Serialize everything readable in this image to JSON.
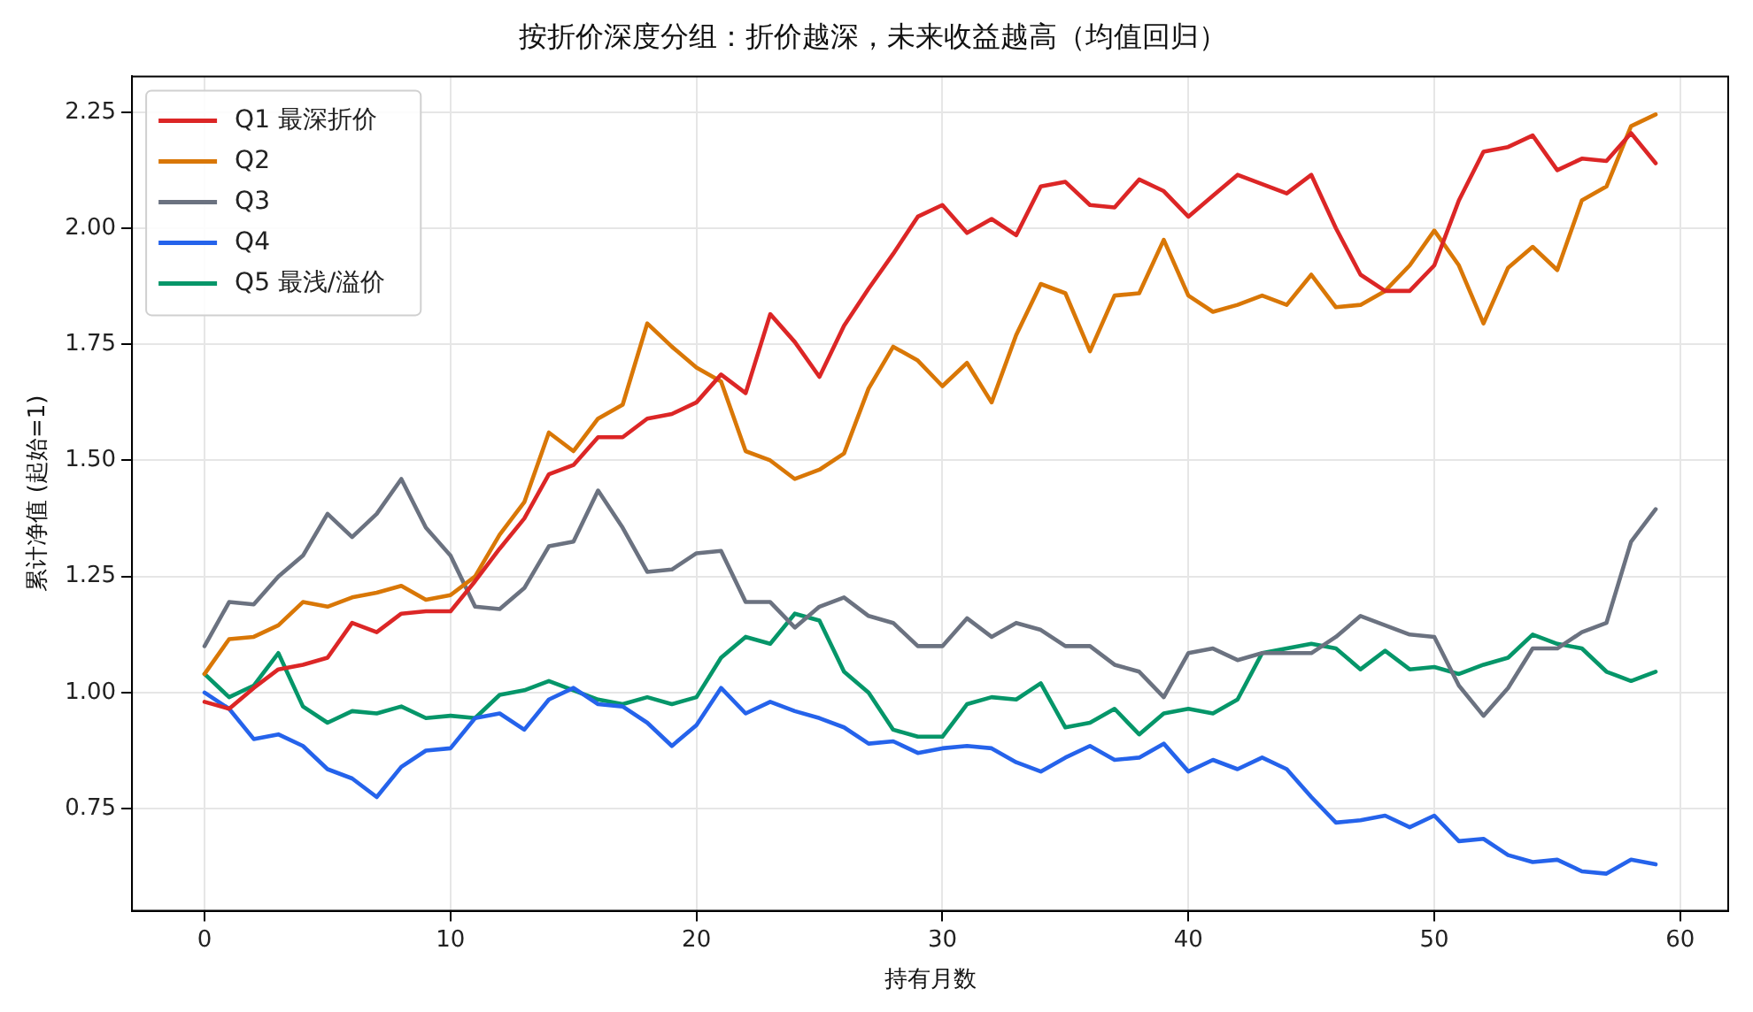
{
  "chart_data": {
    "type": "line",
    "title": "按折价深度分组：折价越深，未来收益越高（均值回归）",
    "xlabel": "持有月数",
    "ylabel": "累计净值 (起始=1)",
    "x": [
      0,
      1,
      2,
      3,
      4,
      5,
      6,
      7,
      8,
      9,
      10,
      11,
      12,
      13,
      14,
      15,
      16,
      17,
      18,
      19,
      20,
      21,
      22,
      23,
      24,
      25,
      26,
      27,
      28,
      29,
      30,
      31,
      32,
      33,
      34,
      35,
      36,
      37,
      38,
      39,
      40,
      41,
      42,
      43,
      44,
      45,
      46,
      47,
      48,
      49,
      50,
      51,
      52,
      53,
      54,
      55,
      56,
      57,
      58,
      59
    ],
    "xlim": [
      -2.95,
      61.95
    ],
    "xticks": [
      0,
      10,
      20,
      30,
      40,
      50,
      60
    ],
    "ylim": [
      0.53,
      2.327
    ],
    "yticks": [
      {
        "value": 0.75,
        "label": "0.75"
      },
      {
        "value": 1,
        "label": "1.00"
      },
      {
        "value": 1.25,
        "label": "1.25"
      },
      {
        "value": 1.5,
        "label": "1.50"
      },
      {
        "value": 1.75,
        "label": "1.75"
      },
      {
        "value": 2,
        "label": "2.00"
      },
      {
        "value": 2.25,
        "label": "2.25"
      }
    ],
    "grid": true,
    "legend": "top left",
    "line_style": "solid",
    "marker": "none",
    "series": [
      {
        "name": "Q1 最深折价",
        "color": "#dc2626",
        "values": [
          0.98,
          0.965,
          1.01,
          1.05,
          1.06,
          1.075,
          1.15,
          1.13,
          1.17,
          1.175,
          1.175,
          1.24,
          1.31,
          1.375,
          1.47,
          1.49,
          1.55,
          1.55,
          1.59,
          1.6,
          1.625,
          1.685,
          1.645,
          1.815,
          1.755,
          1.68,
          1.79,
          1.87,
          1.945,
          2.025,
          2.05,
          1.99,
          2.02,
          1.985,
          2.09,
          2.1,
          2.05,
          2.045,
          2.105,
          2.08,
          2.025,
          2.07,
          2.115,
          2.095,
          2.075,
          2.115,
          2.0,
          1.9,
          1.865,
          1.865,
          1.92,
          2.06,
          2.165,
          2.175,
          2.2,
          2.125,
          2.15,
          2.145,
          2.205,
          2.14
        ]
      },
      {
        "name": "Q2",
        "color": "#d97706",
        "values": [
          1.04,
          1.115,
          1.12,
          1.145,
          1.195,
          1.185,
          1.205,
          1.215,
          1.23,
          1.2,
          1.21,
          1.25,
          1.34,
          1.41,
          1.56,
          1.52,
          1.59,
          1.62,
          1.795,
          1.745,
          1.7,
          1.67,
          1.52,
          1.5,
          1.46,
          1.48,
          1.515,
          1.655,
          1.745,
          1.715,
          1.66,
          1.71,
          1.625,
          1.77,
          1.88,
          1.86,
          1.735,
          1.855,
          1.86,
          1.975,
          1.855,
          1.82,
          1.835,
          1.855,
          1.835,
          1.9,
          1.83,
          1.835,
          1.865,
          1.92,
          1.995,
          1.92,
          1.795,
          1.915,
          1.96,
          1.91,
          2.06,
          2.09,
          2.22,
          2.245
        ]
      },
      {
        "name": "Q3",
        "color": "#6b7280",
        "values": [
          1.1,
          1.195,
          1.19,
          1.25,
          1.295,
          1.385,
          1.335,
          1.385,
          1.46,
          1.355,
          1.295,
          1.185,
          1.18,
          1.225,
          1.315,
          1.325,
          1.435,
          1.355,
          1.26,
          1.265,
          1.3,
          1.305,
          1.195,
          1.195,
          1.14,
          1.185,
          1.205,
          1.165,
          1.15,
          1.1,
          1.1,
          1.16,
          1.12,
          1.15,
          1.135,
          1.1,
          1.1,
          1.06,
          1.045,
          0.99,
          1.085,
          1.095,
          1.07,
          1.085,
          1.085,
          1.085,
          1.12,
          1.165,
          1.145,
          1.125,
          1.12,
          1.015,
          0.95,
          1.01,
          1.095,
          1.095,
          1.13,
          1.15,
          1.325,
          1.395
        ]
      },
      {
        "name": "Q4",
        "color": "#2563eb",
        "values": [
          1.0,
          0.965,
          0.9,
          0.91,
          0.885,
          0.835,
          0.815,
          0.775,
          0.84,
          0.875,
          0.88,
          0.945,
          0.955,
          0.92,
          0.985,
          1.01,
          0.975,
          0.97,
          0.935,
          0.885,
          0.93,
          1.01,
          0.955,
          0.98,
          0.96,
          0.945,
          0.925,
          0.89,
          0.895,
          0.87,
          0.88,
          0.885,
          0.88,
          0.85,
          0.83,
          0.86,
          0.885,
          0.855,
          0.86,
          0.89,
          0.83,
          0.855,
          0.835,
          0.86,
          0.835,
          0.775,
          0.72,
          0.725,
          0.735,
          0.71,
          0.735,
          0.68,
          0.685,
          0.65,
          0.635,
          0.64,
          0.615,
          0.61,
          0.64,
          0.63
        ]
      },
      {
        "name": "Q5 最浅/溢价",
        "color": "#059669",
        "values": [
          1.04,
          0.99,
          1.015,
          1.085,
          0.97,
          0.935,
          0.96,
          0.955,
          0.97,
          0.945,
          0.95,
          0.945,
          0.995,
          1.005,
          1.025,
          1.005,
          0.985,
          0.975,
          0.99,
          0.975,
          0.99,
          1.075,
          1.12,
          1.105,
          1.17,
          1.155,
          1.045,
          1.0,
          0.92,
          0.905,
          0.905,
          0.975,
          0.99,
          0.985,
          1.02,
          0.925,
          0.935,
          0.965,
          0.91,
          0.955,
          0.965,
          0.955,
          0.985,
          1.085,
          1.095,
          1.105,
          1.095,
          1.05,
          1.09,
          1.05,
          1.055,
          1.04,
          1.06,
          1.075,
          1.125,
          1.105,
          1.095,
          1.045,
          1.025,
          1.045
        ]
      }
    ]
  }
}
